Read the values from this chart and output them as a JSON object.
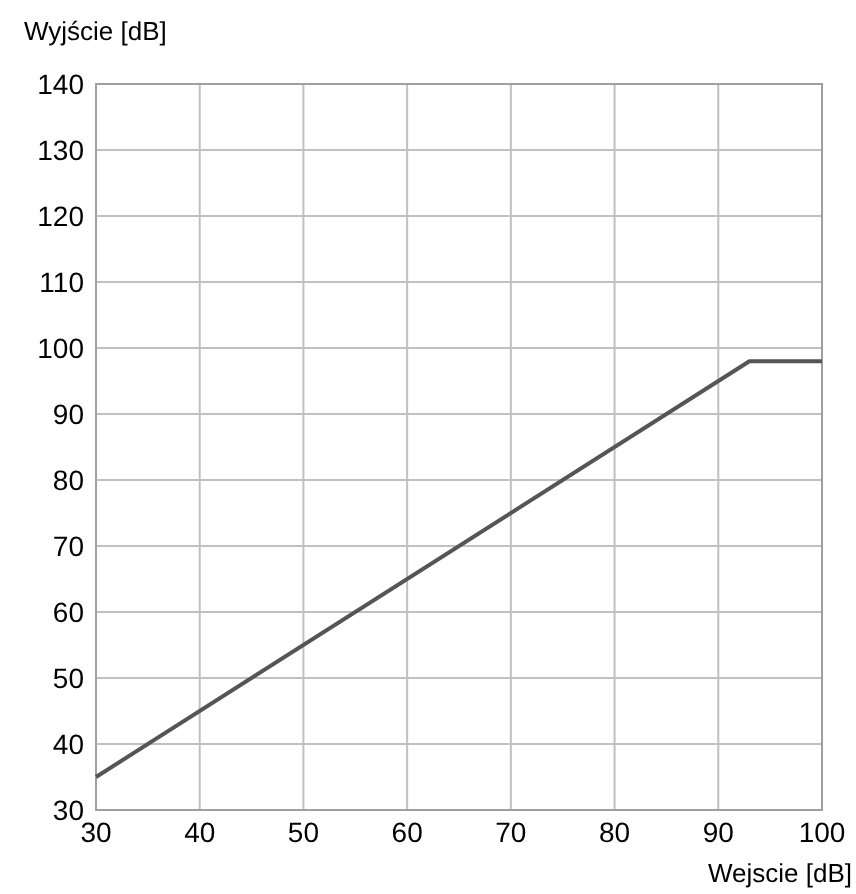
{
  "chart_data": {
    "type": "line",
    "ylabel": "Wyjście [dB]",
    "xlabel": "Wejscie [dB]",
    "x": [
      30,
      93,
      100
    ],
    "series": [
      {
        "color": "#555555",
        "values": [
          35,
          98,
          98
        ]
      }
    ],
    "xlim": [
      30,
      100
    ],
    "ylim": [
      30,
      140
    ],
    "xticks": [
      30,
      40,
      50,
      60,
      70,
      80,
      90,
      100
    ],
    "yticks": [
      30,
      40,
      50,
      60,
      70,
      80,
      90,
      100,
      110,
      120,
      130,
      140
    ],
    "grid": true,
    "marker": "none",
    "line_style": "solid"
  }
}
